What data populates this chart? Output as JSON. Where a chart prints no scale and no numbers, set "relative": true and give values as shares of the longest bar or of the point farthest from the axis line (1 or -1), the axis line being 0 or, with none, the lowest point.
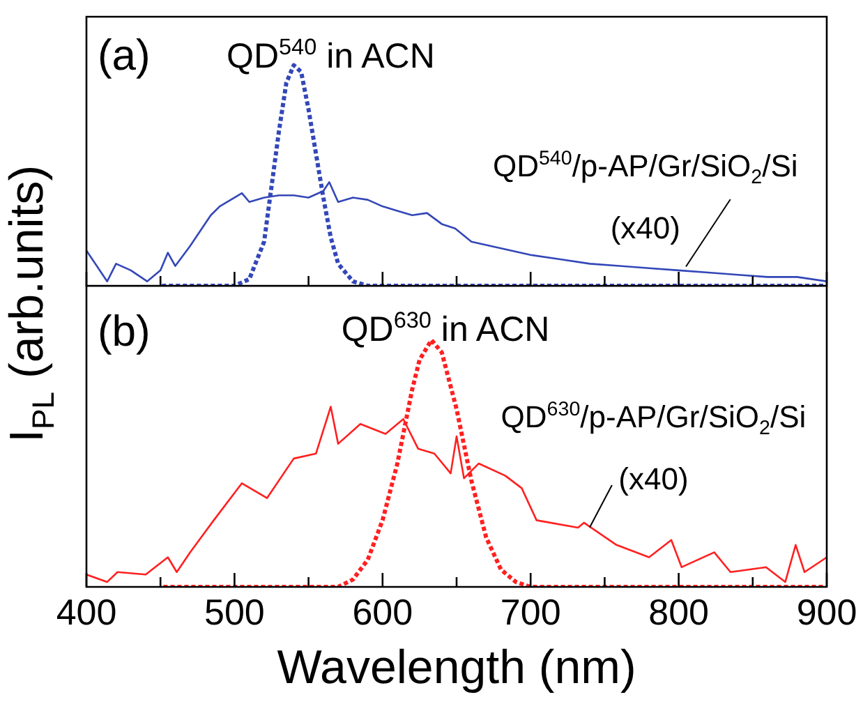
{
  "chart_data": [
    {
      "type": "line",
      "relative": true,
      "ylabel": "I$_{PL}$ (arb.units)",
      "annotations": [
        "(a)"
      ],
      "xlim": [
        400,
        900
      ],
      "xticks": [
        400,
        {
          "value": 450,
          "label": null
        },
        500,
        {
          "value": 550,
          "label": null
        },
        600,
        {
          "value": 650,
          "label": null
        },
        700,
        {
          "value": 750,
          "label": null
        },
        800,
        {
          "value": 850,
          "label": null
        },
        900
      ],
      "tick_labels": false,
      "marker": "none",
      "series": [
        {
          "name": "QD$^{540}$ in ACN",
          "color": "#3347b8",
          "line_style": "dotted",
          "x": [
            451,
            500,
            510,
            520,
            525,
            530,
            535,
            540,
            545,
            550,
            555,
            560,
            565,
            570,
            580,
            590,
            600,
            900
          ],
          "values": [
            0,
            0,
            0.03,
            0.2,
            0.45,
            0.7,
            0.92,
            1,
            0.97,
            0.8,
            0.6,
            0.4,
            0.22,
            0.1,
            0.02,
            0,
            0,
            0
          ]
        },
        {
          "name": "QD$^{540}$/p-AP/Gr/SiO$_{2}$/Si (x40)",
          "color": "#3347b8",
          "line_style": "solid",
          "x": [
            400,
            414,
            420,
            430,
            441,
            450,
            455,
            460,
            470,
            484,
            490,
            505,
            510,
            520,
            530,
            540,
            550,
            560,
            564,
            570,
            580,
            590,
            600,
            610,
            620,
            630,
            640,
            649,
            660,
            680,
            700,
            720,
            740,
            760,
            780,
            800,
            820,
            840,
            860,
            880,
            900
          ],
          "values": [
            0.16,
            0.02,
            0.1,
            0.07,
            0.02,
            0.07,
            0.15,
            0.09,
            0.18,
            0.32,
            0.36,
            0.42,
            0.38,
            0.4,
            0.41,
            0.41,
            0.4,
            0.43,
            0.47,
            0.38,
            0.4,
            0.39,
            0.36,
            0.34,
            0.32,
            0.33,
            0.28,
            0.26,
            0.2,
            0.17,
            0.14,
            0.12,
            0.1,
            0.09,
            0.08,
            0.07,
            0.06,
            0.05,
            0.04,
            0.04,
            0.02
          ]
        }
      ]
    },
    {
      "type": "line",
      "relative": true,
      "xlabel": "Wavelength (nm)",
      "annotations": [
        "(b)"
      ],
      "xlim": [
        400,
        900
      ],
      "xticks": [
        400,
        {
          "value": 450,
          "label": null
        },
        500,
        {
          "value": 550,
          "label": null
        },
        600,
        {
          "value": 650,
          "label": null
        },
        700,
        {
          "value": 750,
          "label": null
        },
        800,
        {
          "value": 850,
          "label": null
        },
        900
      ],
      "tick_labels": "x",
      "marker": "none",
      "series": [
        {
          "name": "QD$^{630}$ in ACN",
          "color": "#ff2020",
          "line_style": "dotted",
          "x": [
            452,
            570,
            580,
            590,
            600,
            610,
            620,
            625,
            633,
            640,
            650,
            660,
            670,
            680,
            690,
            700,
            900
          ],
          "values": [
            0,
            0,
            0.03,
            0.11,
            0.27,
            0.5,
            0.8,
            0.92,
            1,
            0.95,
            0.72,
            0.43,
            0.2,
            0.07,
            0.02,
            0,
            0
          ]
        },
        {
          "name": "QD$^{630}$/p-AP/Gr/SiO$_{2}$/Si (x40)",
          "color": "#ff2020",
          "line_style": "solid",
          "x": [
            400,
            414,
            421,
            440,
            455,
            461,
            470,
            486,
            505,
            522,
            540,
            555,
            565,
            570,
            585,
            602,
            614,
            624,
            635,
            646,
            650,
            655,
            665,
            683,
            694,
            704,
            732,
            736,
            758,
            780,
            795,
            802,
            824,
            835,
            859,
            872,
            879,
            885,
            900
          ],
          "values": [
            0.05,
            0.02,
            0.06,
            0.05,
            0.12,
            0.06,
            0.14,
            0.27,
            0.42,
            0.36,
            0.52,
            0.54,
            0.73,
            0.58,
            0.66,
            0.62,
            0.68,
            0.56,
            0.54,
            0.46,
            0.61,
            0.44,
            0.5,
            0.45,
            0.4,
            0.27,
            0.24,
            0.26,
            0.17,
            0.12,
            0.19,
            0.08,
            0.14,
            0.06,
            0.08,
            0.02,
            0.17,
            0.06,
            0.12
          ]
        }
      ]
    }
  ]
}
